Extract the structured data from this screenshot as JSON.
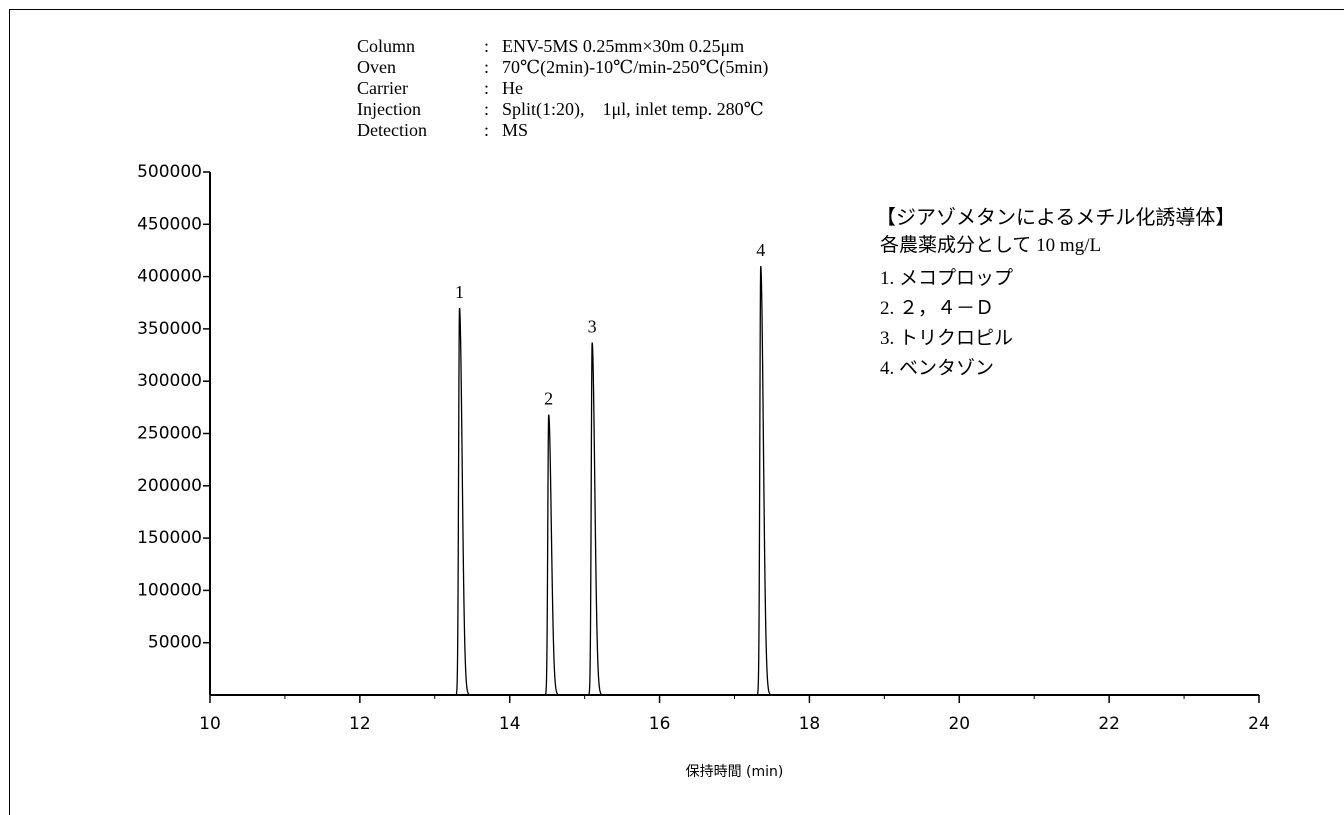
{
  "conditions": [
    {
      "label": "Column",
      "sep": ":",
      "value": "ENV-5MS 0.25mm×30m 0.25μm"
    },
    {
      "label": "Oven",
      "sep": ":",
      "value": "70℃(2min)-10℃/min-250℃(5min)"
    },
    {
      "label": "Carrier",
      "sep": ":",
      "value": "He"
    },
    {
      "label": "Injection",
      "sep": ":",
      "value": "Split(1:20),　1μl,  inlet temp. 280℃"
    },
    {
      "label": "Detection",
      "sep": ":",
      "value": "MS"
    }
  ],
  "legend_box": {
    "title": "【ジアゾメタンによるメチル化誘導体】",
    "subtitle": "各農薬成分として 10 mg/L",
    "items": [
      "1. メコプロップ",
      "2. ２，４－Ｄ",
      "3. トリクロピル",
      "4. ベンタゾン"
    ]
  },
  "chart_data": {
    "type": "line",
    "xlabel": "保持時間 (min)",
    "ylabel": "",
    "xlim": [
      10,
      24
    ],
    "ylim": [
      0,
      500000
    ],
    "x_ticks": [
      10,
      12,
      14,
      16,
      18,
      20,
      22,
      24
    ],
    "y_ticks": [
      50000,
      100000,
      150000,
      200000,
      250000,
      300000,
      350000,
      400000,
      450000,
      500000
    ],
    "grid": false,
    "peaks": [
      {
        "label": "1",
        "x": 13.33,
        "y": 370000
      },
      {
        "label": "2",
        "x": 14.52,
        "y": 268000
      },
      {
        "label": "3",
        "x": 15.1,
        "y": 337000
      },
      {
        "label": "4",
        "x": 17.35,
        "y": 410000
      }
    ],
    "line_color": "#000000"
  }
}
